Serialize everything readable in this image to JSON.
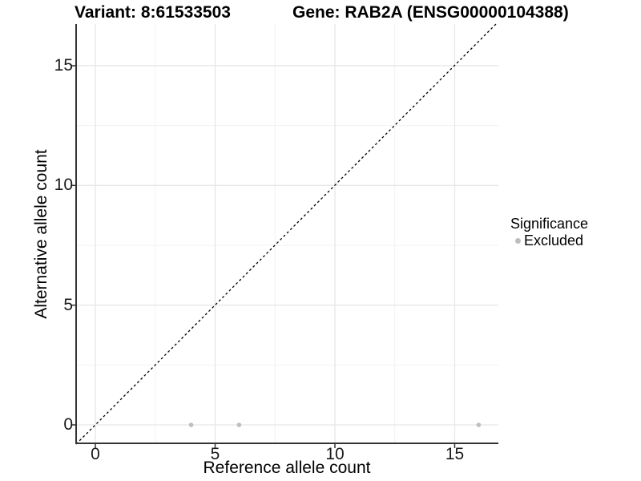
{
  "titles": {
    "variant": "Variant: 8:61533503",
    "gene": "Gene: RAB2A (ENSG00000104388)"
  },
  "axes": {
    "x": {
      "label": "Reference allele count",
      "tick_labels": [
        "0",
        "5",
        "10",
        "15"
      ],
      "tick_values": [
        0,
        5,
        10,
        15
      ]
    },
    "y": {
      "label": "Alternative allele count",
      "tick_labels": [
        "0",
        "5",
        "10",
        "15"
      ],
      "tick_values": [
        0,
        5,
        10,
        15
      ]
    }
  },
  "legend": {
    "title": "Significance",
    "items": [
      {
        "label": "Excluded",
        "color": "#bebebe"
      }
    ]
  },
  "chart_data": {
    "type": "scatter",
    "title": "Variant: 8:61533503 / Gene: RAB2A (ENSG00000104388)",
    "xlabel": "Reference allele count",
    "ylabel": "Alternative allele count",
    "xlim": [
      -0.8,
      16.8
    ],
    "ylim": [
      -0.8,
      16.8
    ],
    "grid": {
      "major": [
        0,
        5,
        10,
        15
      ],
      "minor": [
        2.5,
        7.5,
        12.5
      ],
      "on": true
    },
    "legend_position": "right",
    "series": [
      {
        "name": "Excluded",
        "color": "#bebebe",
        "points": [
          [
            4,
            0
          ],
          [
            6,
            0
          ],
          [
            16,
            0
          ]
        ]
      }
    ],
    "reference_line": {
      "kind": "identity",
      "equation": "y = x",
      "style": "dashed",
      "color": "#000000"
    }
  },
  "colors": {
    "background": "#ffffff",
    "point": "#bebebe",
    "grid_major": "#e6e6e6",
    "grid_minor": "#f2f2f2",
    "axis_line": "#333333",
    "dashed_line": "#000000",
    "text": "#000000"
  }
}
